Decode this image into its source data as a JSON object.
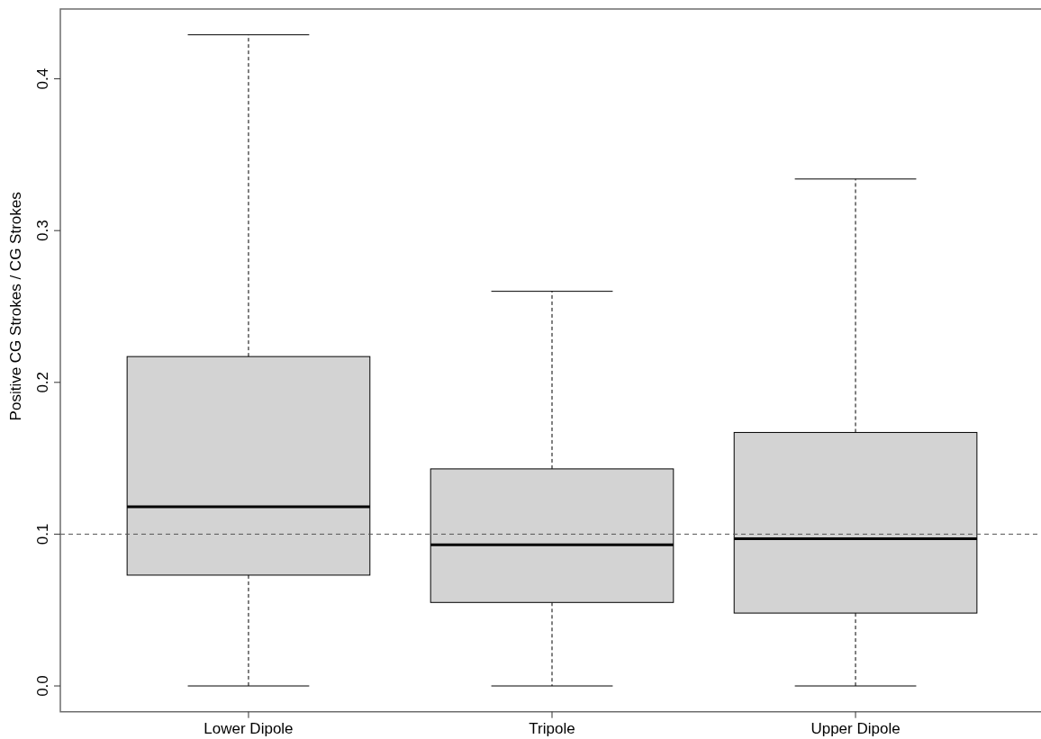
{
  "chart_data": {
    "type": "box",
    "ylabel": "Positive CG Strokes / CG Strokes",
    "categories": [
      "Lower Dipole",
      "Tripole",
      "Upper Dipole"
    ],
    "series": [
      {
        "color": "#d3d3d3",
        "boxes": [
          {
            "low": 0,
            "q1": 0.073,
            "median": 0.118,
            "q3": 0.217,
            "high": 0.429
          },
          {
            "low": 0,
            "q1": 0.055,
            "median": 0.093,
            "q3": 0.143,
            "high": 0.26
          },
          {
            "low": 0,
            "q1": 0.048,
            "median": 0.097,
            "q3": 0.167,
            "high": 0.334
          }
        ]
      }
    ],
    "ylim": [
      -0.017,
      0.446
    ],
    "yticks": [
      {
        "value": 0,
        "label": "0.0"
      },
      0.1,
      0.2,
      0.3,
      0.4
    ],
    "ref_lines": [
      {
        "axis": "y",
        "value": 0.1,
        "color": "#555555",
        "line_style": "dashed"
      }
    ]
  }
}
